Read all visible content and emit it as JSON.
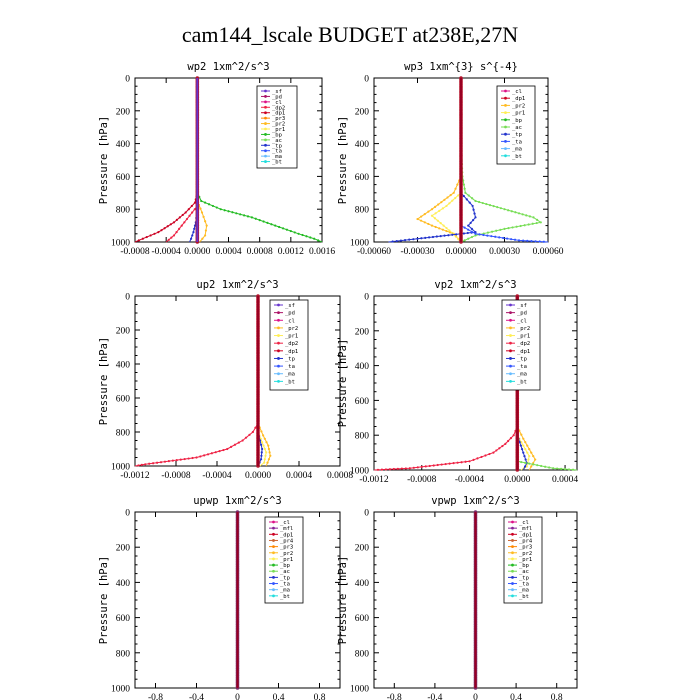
{
  "figure_title": "cam144_lscale  BUDGET at238E,27N",
  "colors": {
    "_sf": "#6633cc",
    "_pd": "#aa1166",
    "_cl": "#dd1188",
    "_dp2": "#ee2244",
    "_dp1": "#cc0022",
    "_pr3": "#ff8800",
    "_pr2": "#ffbb22",
    "_pr1": "#ffee55",
    "_bp": "#22bb22",
    "_ac": "#77dd55",
    "_tp": "#2233cc",
    "_ta": "#3355ff",
    "_ma": "#66bbff",
    "_bt": "#22dddd",
    "_mfl": "#882299",
    "_pr4": "#cc6633"
  },
  "chart_data": [
    {
      "type": "line",
      "name": "wp2",
      "title": "wp2   1xm^2/s^3",
      "ylabel": "Pressure [hPa]",
      "ylim": [
        1000,
        0
      ],
      "xlim": [
        -0.0008,
        0.0016
      ],
      "yticks": [
        "0",
        "200",
        "400",
        "600",
        "800",
        "1000"
      ],
      "xticks": [
        "-0.0008",
        "-0.0004",
        "0.0000",
        "0.0004",
        "0.0008",
        "0.0012",
        "0.0016"
      ],
      "legend": [
        "_sf",
        "_pd",
        "_cl",
        "_dp2",
        "_dp1",
        "_pr3",
        "_pr2",
        "_pr1",
        "_bp",
        "_ac",
        "_tp",
        "_ta",
        "_ma",
        "_bt"
      ],
      "series": [
        {
          "name": "_bp",
          "p": [
            700,
            750,
            800,
            850,
            900,
            950,
            980,
            1000
          ],
          "x": [
            0,
            5e-05,
            0.0003,
            0.0007,
            0.001,
            0.0013,
            0.0015,
            0.0016
          ]
        },
        {
          "name": "_dp1",
          "p": [
            700,
            760,
            820,
            880,
            940,
            980,
            1000
          ],
          "x": [
            0,
            -3e-05,
            -0.00015,
            -0.0003,
            -0.0005,
            -0.0007,
            -0.0008
          ]
        },
        {
          "name": "_dp2",
          "p": [
            780,
            840,
            900,
            960,
            1000
          ],
          "x": [
            0,
            -0.0001,
            -0.0002,
            -0.0003,
            -0.0004
          ]
        },
        {
          "name": "_pr2",
          "p": [
            750,
            820,
            900,
            960,
            1000
          ],
          "x": [
            0,
            6e-05,
            0.00012,
            0.0001,
            3e-05
          ]
        },
        {
          "name": "_tp",
          "p": [
            800,
            880,
            940,
            980,
            1000
          ],
          "x": [
            0,
            -2e-05,
            -5e-05,
            -8e-05,
            -0.0001
          ]
        },
        {
          "name": "_sf",
          "p": [
            0,
            200,
            400,
            600,
            800,
            1000
          ],
          "x": [
            0,
            0,
            0,
            0,
            0,
            0
          ]
        }
      ]
    },
    {
      "type": "line",
      "name": "wp3",
      "title": "wp3   1xm^{3} s^{-4}",
      "ylabel": "Pressure [hPa]",
      "ylim": [
        1000,
        0
      ],
      "xlim": [
        -0.0006,
        0.0006
      ],
      "yticks": [
        "0",
        "200",
        "400",
        "600",
        "800",
        "1000"
      ],
      "xticks": [
        "-0.00060",
        "-0.00030",
        "0.00000",
        "0.00030",
        "0.00060"
      ],
      "legend": [
        "_cl",
        "_dp1",
        "_pr2",
        "_pr1",
        "_bp",
        "_ac",
        "_tp",
        "_ta",
        "_ma",
        "_bt"
      ],
      "series": [
        {
          "name": "_ac",
          "p": [
            400,
            600,
            700,
            750,
            800,
            850,
            880,
            920,
            960,
            1000
          ],
          "x": [
            0,
            1e-05,
            3e-05,
            0.0001,
            0.0003,
            0.0005,
            0.00055,
            0.0003,
            0.0001,
            0
          ],
          "unused": false
        },
        {
          "name": "_pr2",
          "p": [
            600,
            700,
            800,
            860,
            900,
            950,
            1000
          ],
          "x": [
            0,
            -5e-05,
            -0.0002,
            -0.0003,
            -0.0002,
            -5e-05,
            0
          ]
        },
        {
          "name": "_pr1",
          "p": [
            700,
            780,
            840,
            900,
            960,
            1000
          ],
          "x": [
            0,
            -0.0001,
            -0.0002,
            -0.00012,
            -4e-05,
            0
          ]
        },
        {
          "name": "_tp",
          "p": [
            700,
            780,
            850,
            900,
            940,
            980,
            1000
          ],
          "x": [
            0,
            8e-05,
            0.0001,
            5e-05,
            0.0001,
            -0.0003,
            -0.0005
          ]
        },
        {
          "name": "_ta",
          "p": [
            900,
            950,
            990,
            1000
          ],
          "x": [
            0,
            0.0001,
            0.0004,
            0.0006
          ]
        },
        {
          "name": "_dp1",
          "p": [
            0,
            200,
            400,
            600,
            800,
            1000
          ],
          "x": [
            0,
            0,
            0,
            0,
            0,
            0
          ]
        },
        {
          "name": "_cl",
          "p": [
            0,
            200,
            400,
            600,
            800,
            1000
          ],
          "x": [
            0,
            0,
            0,
            0,
            0,
            0
          ]
        }
      ]
    },
    {
      "type": "line",
      "name": "up2",
      "title": "up2   1xm^2/s^3",
      "ylabel": "Pressure [hPa]",
      "ylim": [
        1000,
        0
      ],
      "xlim": [
        -0.0012,
        0.0008
      ],
      "yticks": [
        "0",
        "200",
        "400",
        "600",
        "800",
        "1000"
      ],
      "xticks": [
        "-0.0012",
        "-0.0008",
        "-0.0004",
        "0.0000",
        "0.0004",
        "0.0008"
      ],
      "legend": [
        "_sf",
        "_pd",
        "_cl",
        "_pr2",
        "_pr1",
        "_dp2",
        "_dp1",
        "_tp",
        "_ta",
        "_ma",
        "_bt"
      ],
      "series": [
        {
          "name": "_dp2",
          "p": [
            750,
            800,
            850,
            900,
            950,
            990,
            1000
          ],
          "x": [
            0,
            -5e-05,
            -0.00015,
            -0.0003,
            -0.0006,
            -0.0011,
            -0.0012
          ]
        },
        {
          "name": "_pr2",
          "p": [
            750,
            820,
            880,
            940,
            1000
          ],
          "x": [
            0,
            5e-05,
            0.0001,
            0.00012,
            8e-05
          ]
        },
        {
          "name": "_pr1",
          "p": [
            800,
            860,
            920,
            980,
            1000
          ],
          "x": [
            0,
            4e-05,
            8e-05,
            6e-05,
            2e-05
          ]
        },
        {
          "name": "_tp",
          "p": [
            800,
            900,
            960,
            1000
          ],
          "x": [
            0,
            4e-05,
            3e-05,
            0
          ]
        },
        {
          "name": "_dp1",
          "p": [
            0,
            200,
            400,
            600,
            800,
            1000
          ],
          "x": [
            0,
            0,
            0,
            0,
            0,
            0
          ]
        }
      ]
    },
    {
      "type": "line",
      "name": "vp2",
      "title": "vp2   1xm^2/s^3",
      "ylabel": "Pressure [hPa]",
      "ylim": [
        1000,
        0
      ],
      "xlim": [
        -0.0012,
        0.0005
      ],
      "yticks": [
        "0",
        "200",
        "400",
        "600",
        "800",
        "1000"
      ],
      "xticks": [
        "-0.0012",
        "-0.0008",
        "-0.0004",
        "0.0000",
        "0.0004"
      ],
      "legend": [
        "_sf",
        "_pd",
        "_cl",
        "_pr2",
        "_pr1",
        "_dp2",
        "_dp1",
        "_tp",
        "_ta",
        "_ma",
        "_bt"
      ],
      "series": [
        {
          "name": "_dp2",
          "p": [
            750,
            800,
            850,
            900,
            950,
            990,
            1000
          ],
          "x": [
            0,
            -3e-05,
            -0.0001,
            -0.0002,
            -0.0004,
            -0.0009,
            -0.0012
          ]
        },
        {
          "name": "_pr2",
          "p": [
            750,
            820,
            880,
            940,
            1000
          ],
          "x": [
            0,
            5e-05,
            0.0001,
            0.00015,
            0.0001
          ]
        },
        {
          "name": "_pr1",
          "p": [
            800,
            860,
            920,
            980,
            1000
          ],
          "x": [
            0,
            5e-05,
            0.0001,
            8e-05,
            3e-05
          ]
        },
        {
          "name": "_tp",
          "p": [
            800,
            900,
            960,
            1000
          ],
          "x": [
            0,
            5e-05,
            8e-05,
            5e-05
          ]
        },
        {
          "name": "_ac",
          "p": [
            950,
            990,
            1000
          ],
          "x": [
            0,
            0.0003,
            0.0005
          ]
        },
        {
          "name": "_dp1",
          "p": [
            0,
            200,
            400,
            600,
            800,
            1000
          ],
          "x": [
            0,
            0,
            0,
            0,
            0,
            0
          ]
        }
      ]
    },
    {
      "type": "line",
      "name": "upwp",
      "title": "upwp   1xm^2/s^3",
      "ylabel": "Pressure [hPa]",
      "ylim": [
        1000,
        0
      ],
      "xlim": [
        -1,
        1
      ],
      "yticks": [
        "0",
        "200",
        "400",
        "600",
        "800",
        "1000"
      ],
      "xticks": [
        "-0.8",
        "-0.4",
        "0",
        "0.4",
        "0.8"
      ],
      "legend": [
        "_cl",
        "_mfl",
        "_dp1",
        "_pr4",
        "_pr3",
        "_pr2",
        "_pr1",
        "_bp",
        "_ac",
        "_tp",
        "_ta",
        "_ma",
        "_bt"
      ],
      "series": [
        {
          "name": "_mfl",
          "p": [
            0,
            200,
            400,
            600,
            800,
            1000
          ],
          "x": [
            0,
            0,
            0,
            0,
            0,
            0
          ]
        }
      ]
    },
    {
      "type": "line",
      "name": "vpwp",
      "title": "vpwp   1xm^2/s^3",
      "ylabel": "Pressure [hPa]",
      "ylim": [
        1000,
        0
      ],
      "xlim": [
        -1,
        1
      ],
      "yticks": [
        "0",
        "200",
        "400",
        "600",
        "800",
        "1000"
      ],
      "xticks": [
        "-0.8",
        "-0.4",
        "0",
        "0.4",
        "0.8"
      ],
      "legend": [
        "_cl",
        "_mfl",
        "_dp1",
        "_pr4",
        "_pr3",
        "_pr2",
        "_pr1",
        "_bp",
        "_ac",
        "_tp",
        "_ta",
        "_ma",
        "_bt"
      ],
      "series": [
        {
          "name": "_mfl",
          "p": [
            0,
            200,
            400,
            600,
            800,
            1000
          ],
          "x": [
            0,
            0,
            0,
            0,
            0,
            0
          ]
        }
      ]
    }
  ]
}
